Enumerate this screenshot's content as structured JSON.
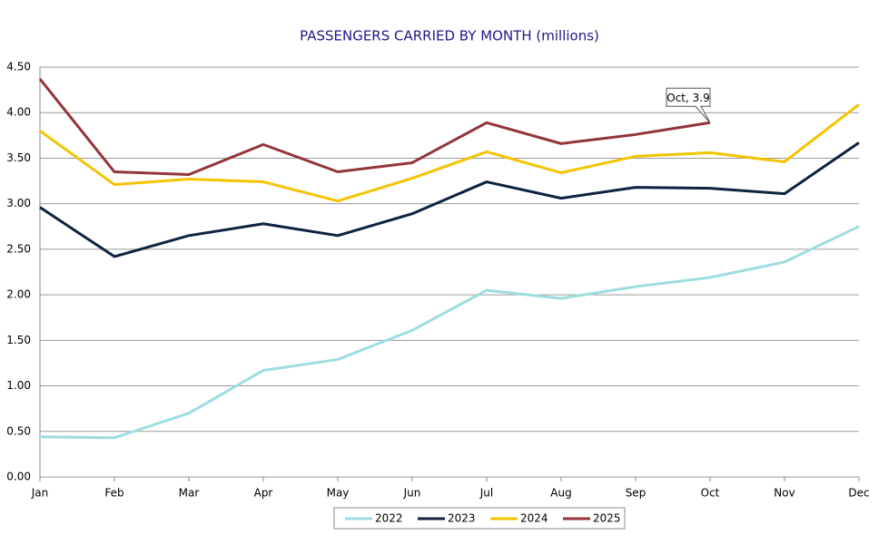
{
  "chart_data": {
    "type": "line",
    "title": "PASSENGERS CARRIED BY MONTH (millions)",
    "categories": [
      "Jan",
      "Feb",
      "Mar",
      "Apr",
      "May",
      "Jun",
      "Jul",
      "Aug",
      "Sep",
      "Oct",
      "Nov",
      "Dec"
    ],
    "series": [
      {
        "name": "2022",
        "color": "#9ddde0",
        "values": [
          0.44,
          0.43,
          0.7,
          1.17,
          1.29,
          1.61,
          2.05,
          1.96,
          2.09,
          2.19,
          2.36,
          2.75
        ]
      },
      {
        "name": "2023",
        "color": "#0d2340",
        "values": [
          2.96,
          2.42,
          2.65,
          2.78,
          2.65,
          2.89,
          3.24,
          3.06,
          3.18,
          3.17,
          3.11,
          3.67
        ]
      },
      {
        "name": "2024",
        "color": "#f5c400",
        "values": [
          3.8,
          3.21,
          3.27,
          3.24,
          3.03,
          3.28,
          3.57,
          3.34,
          3.52,
          3.56,
          3.46,
          4.09
        ]
      },
      {
        "name": "2025",
        "color": "#93353a",
        "values": [
          4.37,
          3.35,
          3.32,
          3.65,
          3.35,
          3.45,
          3.89,
          3.66,
          3.76,
          3.89,
          null,
          null
        ]
      }
    ],
    "annotation": {
      "text": "Oct, 3.9",
      "series": 3,
      "index": 9
    },
    "ylim": [
      0,
      4.5
    ],
    "yticks": [
      {
        "value": 0,
        "label": "0.00"
      },
      {
        "value": 0.5,
        "label": "0.50"
      },
      {
        "value": 1,
        "label": "1.00"
      },
      {
        "value": 1.5,
        "label": "1.50"
      },
      {
        "value": 2,
        "label": "2.00"
      },
      {
        "value": 2.5,
        "label": "2.50"
      },
      {
        "value": 3,
        "label": "3.00"
      },
      {
        "value": 3.5,
        "label": "3.50"
      },
      {
        "value": 4,
        "label": "4.00"
      },
      {
        "value": 4.5,
        "label": "4.50"
      }
    ],
    "grid": true,
    "legend": "bottom"
  }
}
